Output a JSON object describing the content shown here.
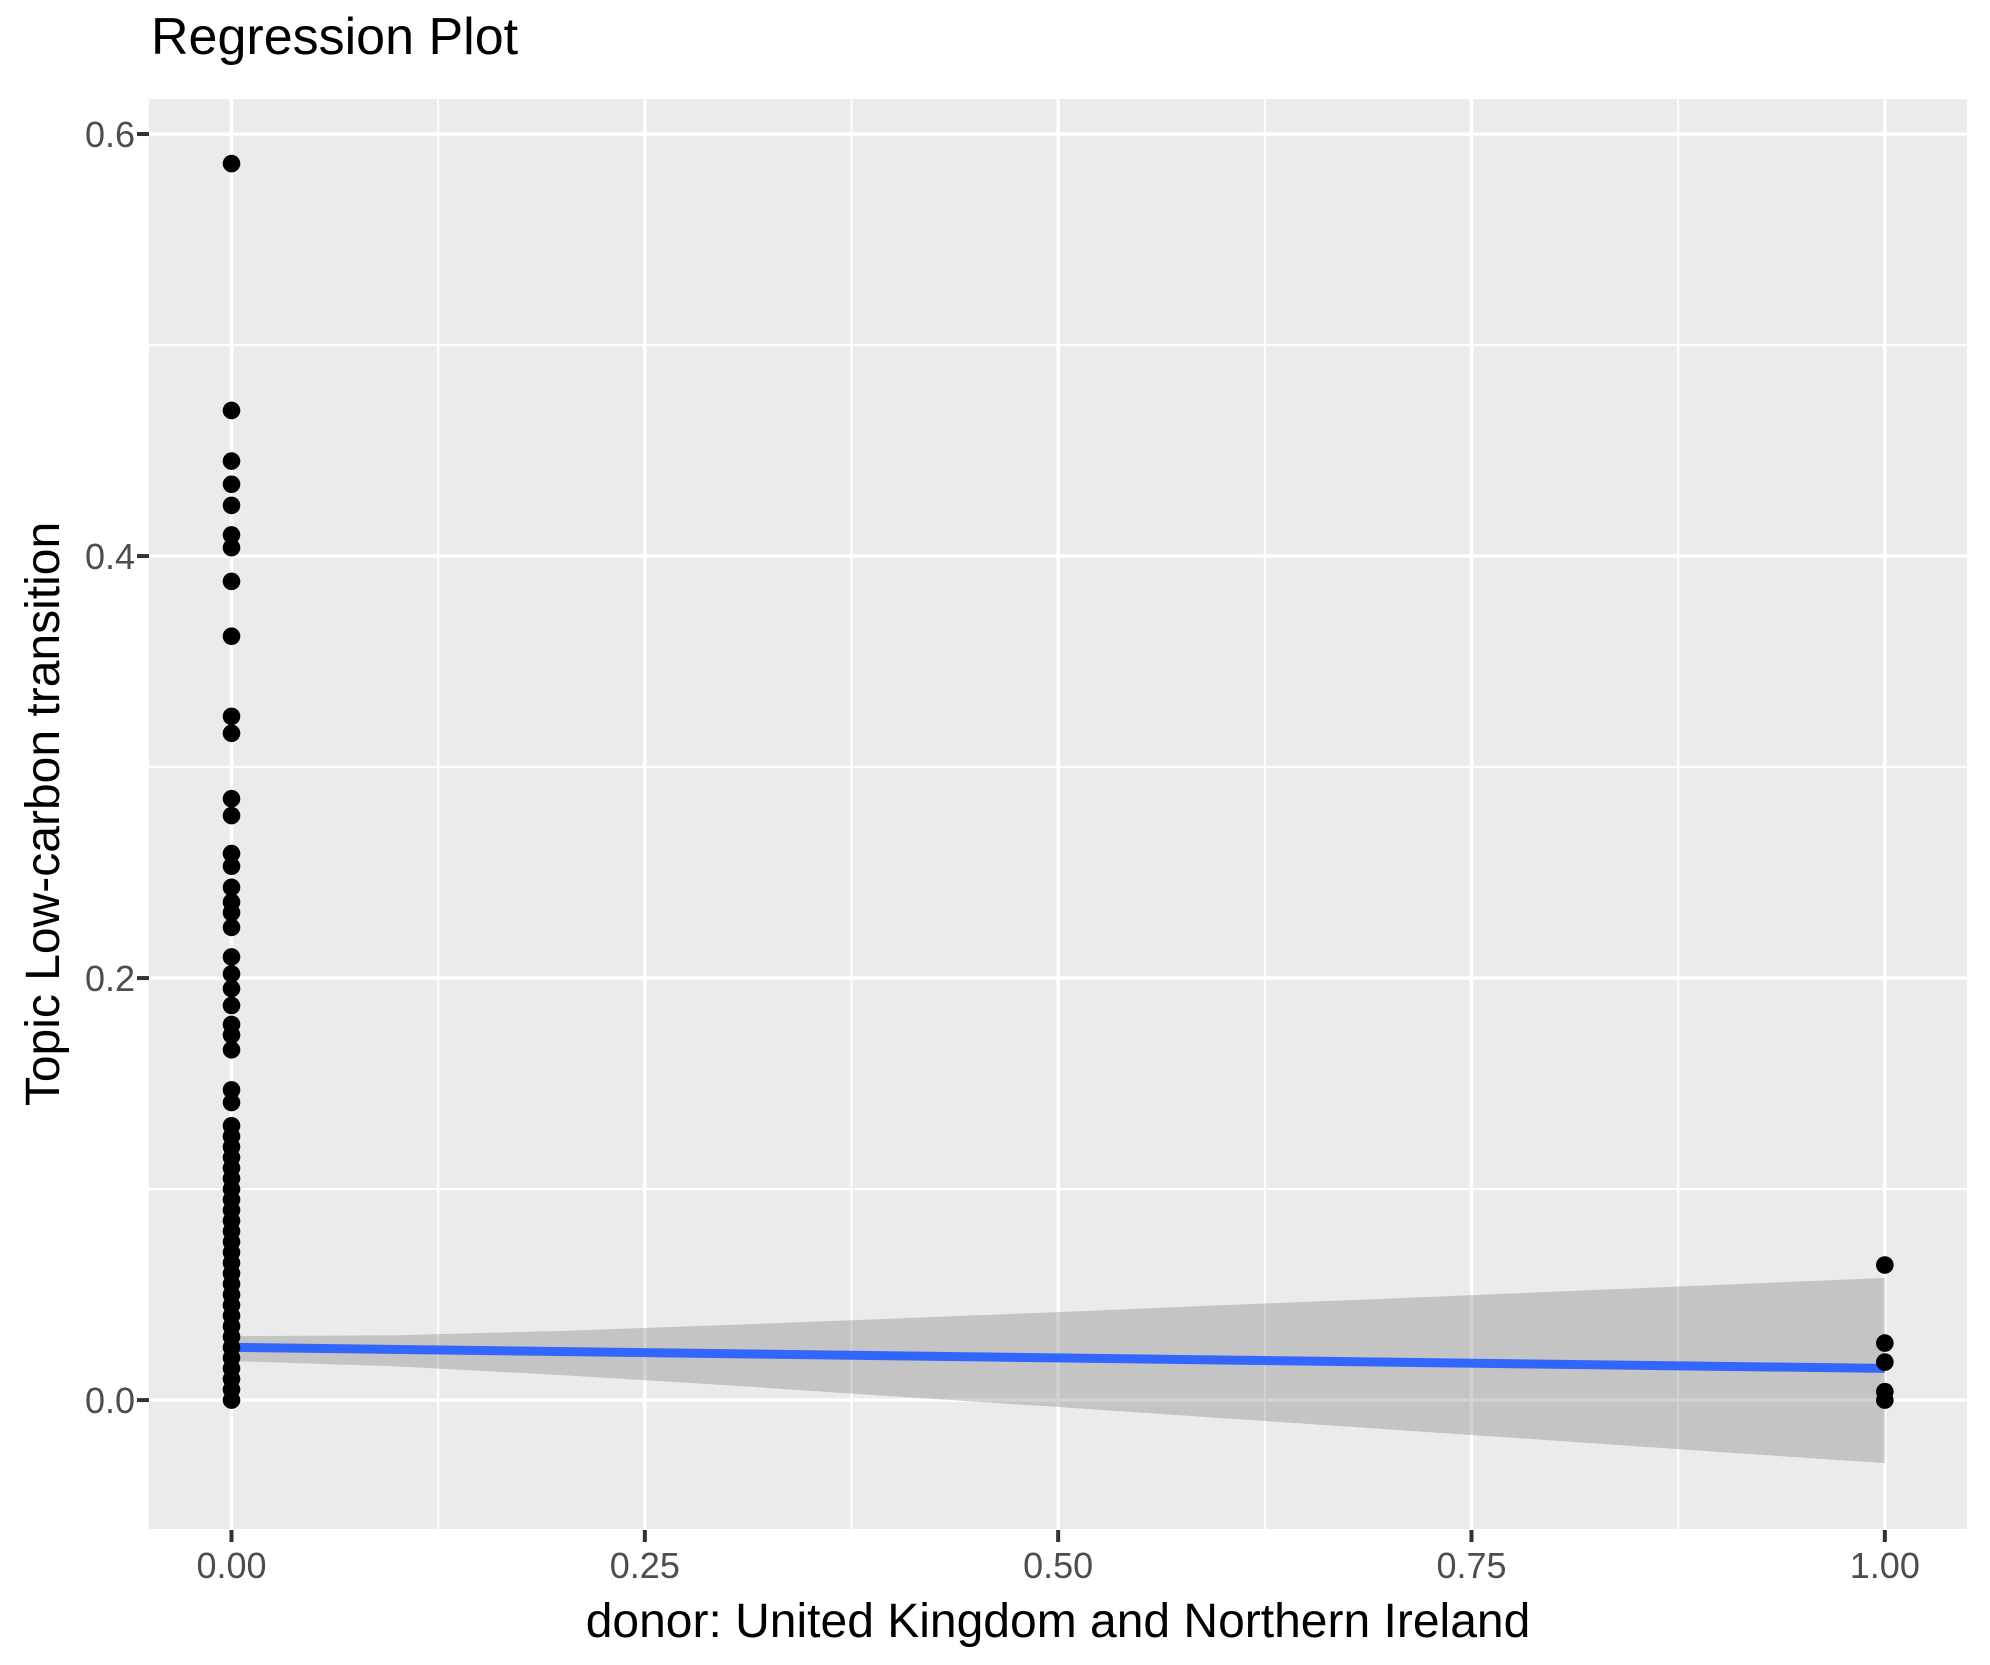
{
  "chart_data": {
    "type": "scatter",
    "title": "Regression Plot",
    "xlabel": "donor: United Kingdom and Northern Ireland",
    "ylabel": "Topic Low-carbon transition",
    "xlim": [
      -0.0499,
      1.0497
    ],
    "ylim": [
      -0.0611,
      0.6166
    ],
    "grid": true,
    "legend_position": "none",
    "x_major_ticks": [
      0.0,
      0.25,
      0.5,
      0.75,
      1.0
    ],
    "x_tick_labels": [
      "0.00",
      "0.25",
      "0.50",
      "0.75",
      "1.00"
    ],
    "x_minor_ticks": [
      0.125,
      0.375,
      0.625,
      0.875
    ],
    "y_major_ticks": [
      0.0,
      0.2,
      0.4,
      0.6
    ],
    "y_tick_labels": [
      "0.0",
      "0.2",
      "0.4",
      "0.6"
    ],
    "y_minor_ticks": [
      0.1,
      0.3,
      0.5
    ],
    "points": [
      {
        "x": 0,
        "values": [
          0.586,
          0.469,
          0.445,
          0.434,
          0.424,
          0.41,
          0.404,
          0.388,
          0.362,
          0.324,
          0.316,
          0.285,
          0.277,
          0.259,
          0.253,
          0.243,
          0.236,
          0.231,
          0.224,
          0.21,
          0.202,
          0.195,
          0.187,
          0.178,
          0.173,
          0.166,
          0.147,
          0.141,
          0.13,
          0.125,
          0.12,
          0.115,
          0.11,
          0.105,
          0.1,
          0.095,
          0.09,
          0.085,
          0.08,
          0.075,
          0.07,
          0.065,
          0.06,
          0.055,
          0.05,
          0.045,
          0.04,
          0.035,
          0.03,
          0.025,
          0.02,
          0.015,
          0.01,
          0.005,
          0.0
        ]
      },
      {
        "x": 1,
        "values": [
          0.064,
          0.027,
          0.018,
          0.004,
          0.0
        ]
      }
    ],
    "regression_line": {
      "x": [
        0,
        1
      ],
      "y": [
        0.025,
        0.015
      ],
      "color": "#3366FF"
    },
    "confidence_band": {
      "x": [
        0.0,
        0.1,
        0.2,
        0.3,
        0.4,
        0.5,
        0.6,
        0.7,
        0.8,
        0.9,
        1.0
      ],
      "upper": [
        0.0303,
        0.0307,
        0.0328,
        0.0356,
        0.0386,
        0.0417,
        0.045,
        0.0481,
        0.0514,
        0.0546,
        0.0579
      ],
      "lower": [
        0.0185,
        0.016,
        0.0118,
        0.007,
        0.0018,
        -0.0033,
        -0.0086,
        -0.0139,
        -0.0192,
        -0.0246,
        -0.0299
      ],
      "color": "#737373",
      "opacity": 0.32
    },
    "colors": {
      "panel_background": "#EBEBEB",
      "grid": "#FFFFFF",
      "point": "#000000",
      "tick_mark": "#333333",
      "tick_label": "#4D4D4D",
      "title_text": "#000000"
    }
  }
}
